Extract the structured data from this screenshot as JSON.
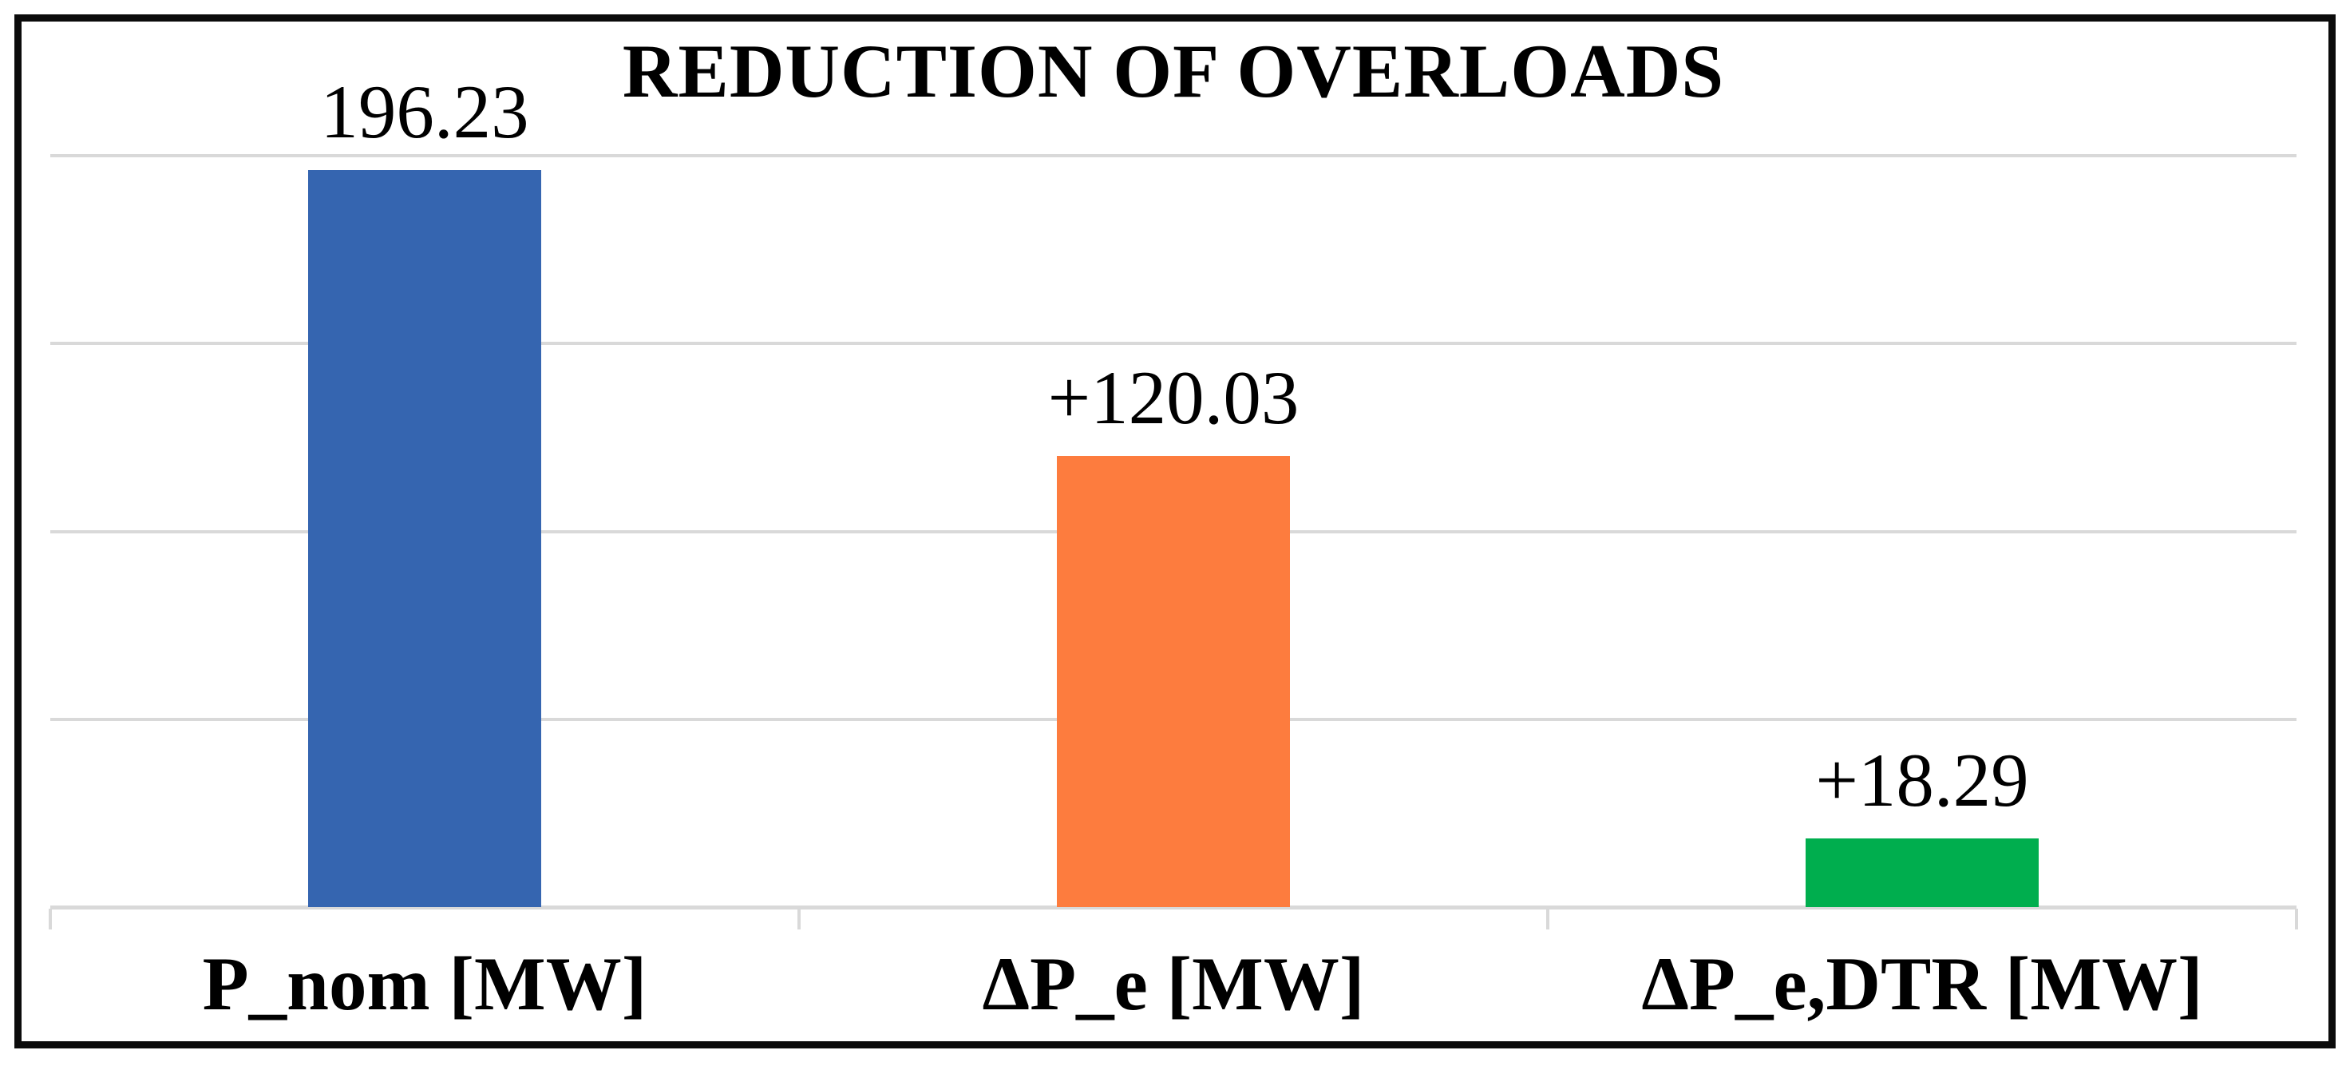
{
  "chart_data": {
    "type": "bar",
    "title": "REDUCTION OF OVERLOADS",
    "categories": [
      "P_nom [MW]",
      "ΔP_e [MW]",
      "ΔP_e,DTR [MW]"
    ],
    "values": [
      196.23,
      120.03,
      18.29
    ],
    "value_labels": [
      "196.23",
      "+120.03",
      "+18.29"
    ],
    "bar_colors": [
      "#3565B0",
      "#FD7C3E",
      "#00AE4E"
    ],
    "xlabel": "",
    "ylabel": "",
    "ylim": [
      0,
      200
    ],
    "gridline_interval": 50,
    "grid": true,
    "legend_position": "none",
    "y_tick_labels_visible": false,
    "data_label_position": "outside-end",
    "colors": {
      "gridline": "#D9D9D9",
      "axis": "#D9D9D9",
      "frame_border": "#0B0B0B",
      "background": "#FFFFFF",
      "text": "#000000"
    }
  }
}
